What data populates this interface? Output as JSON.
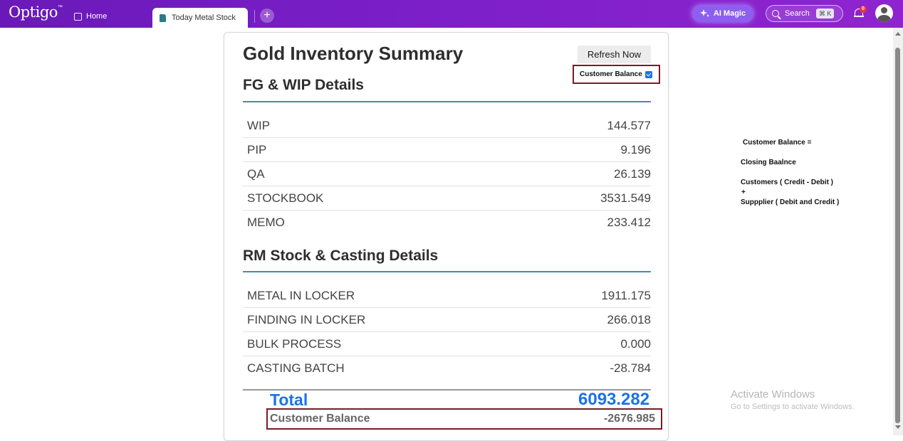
{
  "app": {
    "logo_text": "Optigo",
    "logo_mark": "™"
  },
  "tabs": {
    "home_label": "Home",
    "active_label": "Today Metal Stock",
    "add_symbol": "+"
  },
  "header": {
    "ai_magic_label": "AI Magic",
    "search_label": "Search",
    "search_shortcut": "⌘ K",
    "notification_count": "0"
  },
  "page": {
    "title": "Gold Inventory Summary",
    "refresh_label": "Refresh Now",
    "customer_balance_toggle_label": "Customer Balance",
    "customer_balance_checked": true
  },
  "fg_wip": {
    "title": "FG & WIP Details",
    "rows": [
      {
        "label": "WIP",
        "value": "144.577"
      },
      {
        "label": "PIP",
        "value": "9.196"
      },
      {
        "label": "QA",
        "value": "26.139"
      },
      {
        "label": "STOCKBOOK",
        "value": "3531.549"
      },
      {
        "label": "MEMO",
        "value": "233.412"
      }
    ]
  },
  "rm_stock": {
    "title": "RM Stock & Casting Details",
    "rows": [
      {
        "label": "METAL IN LOCKER",
        "value": "1911.175"
      },
      {
        "label": "FINDING IN LOCKER",
        "value": "266.018"
      },
      {
        "label": "BULK PROCESS",
        "value": "0.000"
      },
      {
        "label": "CASTING BATCH",
        "value": "-28.784"
      }
    ]
  },
  "totals": {
    "total_label": "Total",
    "total_value": "6093.282",
    "customer_balance_label": "Customer Balance",
    "customer_balance_value": "-2676.985"
  },
  "note": {
    "line1": "Customer Balance =",
    "line2": "Closing Baalnce",
    "line3": "Customers ( Credit - Debit )",
    "line4": "+",
    "line5": "Suppplier ( Debit and Credit )"
  },
  "watermark": {
    "title": "Activate Windows",
    "subtitle": "Go to Settings to activate Windows."
  },
  "colors": {
    "topbar": "#7b1fc9",
    "accent_blue": "#1a73e8",
    "section_rule": "#3b8fb0",
    "highlight_border": "#7b1a28"
  }
}
